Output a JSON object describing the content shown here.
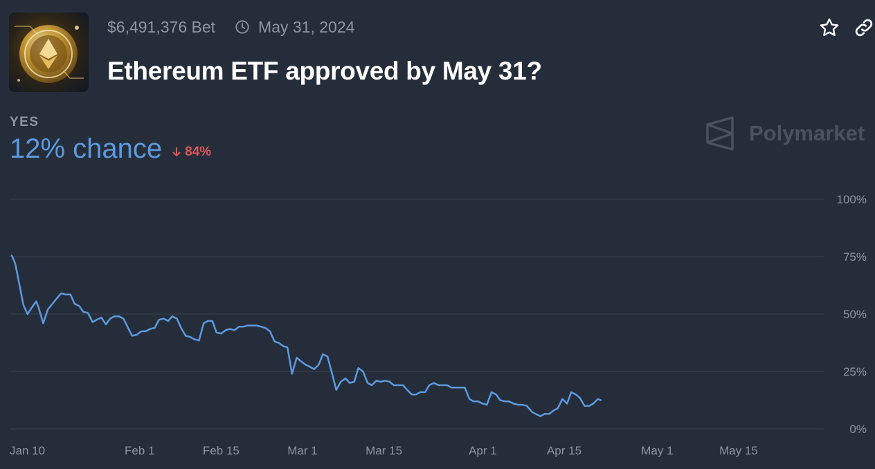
{
  "header": {
    "volume": "$6,491,376 Bet",
    "end_date": "May 31, 2024",
    "title": "Ethereum ETF approved by May 31?",
    "thumbnail_icon": "ethereum-coin-image",
    "star_icon": "star-icon",
    "link_icon": "link-icon"
  },
  "outcome": {
    "label": "YES",
    "chance": "12% chance",
    "change": "84%",
    "change_direction": "down"
  },
  "brand": {
    "name": "Polymarket"
  },
  "colors": {
    "background": "#262d3a",
    "line": "#5c9ae0",
    "down": "#e0565a",
    "muted": "#8d94a3"
  },
  "chart_data": {
    "type": "line",
    "x_start": "Jan 10",
    "x_end": "May 20",
    "x_ticks": [
      {
        "label": "Jan 10",
        "day": 0
      },
      {
        "label": "Feb 1",
        "day": 22
      },
      {
        "label": "Feb 15",
        "day": 36
      },
      {
        "label": "Mar 1",
        "day": 50
      },
      {
        "label": "Mar 15",
        "day": 64
      },
      {
        "label": "Apr 1",
        "day": 81
      },
      {
        "label": "Apr 15",
        "day": 95
      },
      {
        "label": "May 1",
        "day": 111
      },
      {
        "label": "May 15",
        "day": 125
      }
    ],
    "y_ticks": [
      {
        "label": "100%",
        "value": 100
      },
      {
        "label": "75%",
        "value": 75
      },
      {
        "label": "50%",
        "value": 50
      },
      {
        "label": "25%",
        "value": 25
      },
      {
        "label": "0%",
        "value": 0
      }
    ],
    "ylim": [
      0,
      100
    ],
    "grid": true,
    "series": [
      {
        "values": [
          [
            0,
            75.5
          ],
          [
            0.6,
            72
          ],
          [
            1.3,
            63
          ],
          [
            2,
            54
          ],
          [
            2.7,
            50
          ],
          [
            3.5,
            53
          ],
          [
            4.2,
            55.5
          ],
          [
            4.6,
            53
          ],
          [
            5.4,
            46
          ],
          [
            6.2,
            52
          ],
          [
            7,
            54.5
          ],
          [
            7.8,
            57
          ],
          [
            8.5,
            59
          ],
          [
            9.3,
            58.5
          ],
          [
            10.1,
            58.5
          ],
          [
            10.8,
            54.5
          ],
          [
            11.6,
            53.5
          ],
          [
            12.3,
            51
          ],
          [
            13.1,
            50.5
          ],
          [
            13.9,
            46.5
          ],
          [
            14.6,
            47.5
          ],
          [
            15.4,
            48.5
          ],
          [
            16.2,
            45.5
          ],
          [
            16.9,
            48
          ],
          [
            17.7,
            49
          ],
          [
            18.4,
            49
          ],
          [
            19.2,
            48
          ],
          [
            20,
            44
          ],
          [
            20.7,
            40.5
          ],
          [
            21.5,
            41
          ],
          [
            22.3,
            42.5
          ],
          [
            23,
            42.5
          ],
          [
            23.8,
            43.5
          ],
          [
            24.6,
            44
          ],
          [
            25.3,
            47.5
          ],
          [
            26.1,
            48
          ],
          [
            26.9,
            47
          ],
          [
            27.6,
            49
          ],
          [
            28.4,
            48
          ],
          [
            29.1,
            44
          ],
          [
            29.9,
            40.5
          ],
          [
            30.7,
            40
          ],
          [
            31.4,
            39
          ],
          [
            32.2,
            38.5
          ],
          [
            33,
            46
          ],
          [
            33.7,
            47
          ],
          [
            34.5,
            47
          ],
          [
            35.2,
            42
          ],
          [
            36,
            41.5
          ],
          [
            36.8,
            43
          ],
          [
            37.5,
            43.5
          ],
          [
            38.3,
            43
          ],
          [
            39.1,
            44.5
          ],
          [
            39.8,
            44.5
          ],
          [
            40.6,
            45
          ],
          [
            41.3,
            45
          ],
          [
            42.1,
            45
          ],
          [
            42.9,
            44.5
          ],
          [
            43.6,
            44
          ],
          [
            44.4,
            42.5
          ],
          [
            45.2,
            38
          ],
          [
            45.9,
            37.5
          ],
          [
            46.7,
            36
          ],
          [
            47.4,
            35.5
          ],
          [
            48.2,
            24
          ],
          [
            49,
            31
          ],
          [
            49.7,
            29.5
          ],
          [
            50.5,
            28
          ],
          [
            51.3,
            27
          ],
          [
            52,
            26
          ],
          [
            52.8,
            28
          ],
          [
            53.5,
            32.5
          ],
          [
            54.3,
            31.5
          ],
          [
            55.1,
            24
          ],
          [
            55.8,
            17
          ],
          [
            56.6,
            20.5
          ],
          [
            57.4,
            22
          ],
          [
            58.1,
            20
          ],
          [
            58.9,
            20.5
          ],
          [
            59.6,
            26.5
          ],
          [
            60.4,
            25
          ],
          [
            61.2,
            20
          ],
          [
            61.9,
            19
          ],
          [
            62.7,
            21
          ],
          [
            63.4,
            20.5
          ],
          [
            64.2,
            21
          ],
          [
            65,
            20.5
          ],
          [
            65.7,
            19
          ],
          [
            66.5,
            19
          ],
          [
            67.3,
            19
          ],
          [
            68,
            17
          ],
          [
            68.8,
            15
          ],
          [
            69.5,
            15
          ],
          [
            70.3,
            16
          ],
          [
            71.1,
            16
          ],
          [
            71.8,
            19
          ],
          [
            72.6,
            20
          ],
          [
            73.4,
            19
          ],
          [
            74.1,
            19
          ],
          [
            74.9,
            19
          ],
          [
            75.6,
            18
          ],
          [
            76.4,
            18
          ],
          [
            77.2,
            18
          ],
          [
            77.9,
            18
          ],
          [
            78.7,
            13
          ],
          [
            79.4,
            12
          ],
          [
            80.2,
            12
          ],
          [
            81,
            11
          ],
          [
            81.7,
            10.5
          ],
          [
            82.5,
            16
          ],
          [
            83.3,
            15
          ],
          [
            84,
            12.5
          ],
          [
            84.8,
            12
          ],
          [
            85.5,
            12
          ],
          [
            86.3,
            11
          ],
          [
            87.1,
            10.5
          ],
          [
            87.8,
            10.5
          ],
          [
            88.6,
            10
          ],
          [
            89.4,
            7.5
          ],
          [
            90.1,
            6.5
          ],
          [
            90.9,
            5.5
          ],
          [
            91.6,
            6.5
          ],
          [
            92.4,
            6.5
          ],
          [
            93.2,
            8
          ],
          [
            93.9,
            9
          ],
          [
            94.7,
            13
          ],
          [
            95.5,
            11
          ],
          [
            96.2,
            16
          ],
          [
            97,
            15
          ],
          [
            97.7,
            13.5
          ],
          [
            98.5,
            10
          ],
          [
            99.3,
            10
          ],
          [
            100,
            11
          ],
          [
            100.8,
            13
          ],
          [
            101.3,
            12.5
          ]
        ]
      }
    ]
  }
}
